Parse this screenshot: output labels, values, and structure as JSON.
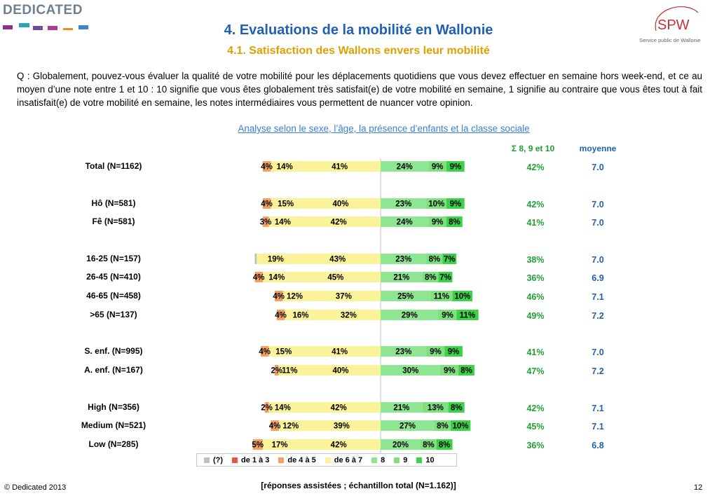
{
  "logo": {
    "text": "DEDICATED",
    "squares": [
      "#8e2f8a",
      "#2aa6b8",
      "#6a4c9c",
      "#b5388f",
      "#f08a1e",
      "#3d86c6"
    ]
  },
  "brand_logo": {
    "text": "SPW",
    "tagline": "Service public de Wallonie",
    "color": "#c0323a"
  },
  "title": "4. Evaluations de la mobilité en Wallonie",
  "subtitle": "4.1. Satisfaction des Wallons envers leur mobilité",
  "question": "Q : Globalement, pouvez-vous évaluer la qualité de votre mobilité pour les déplacements quotidiens que vous devez effectuer en semaine hors week-end, et ce au moyen d’une note entre 1 et 10 : 10 signifie que vous êtes globalement très satisfait(e) de votre mobilité en semaine, 1 signifie au contraire que vous êtes tout à fait insatisfait(e) de votre mobilité en semaine, les notes intermédiaires vous permettent de nuancer votre opinion.",
  "analysis_link": "Analyse selon le sexe, l’âge, la présence d’enfants et la classe sociale",
  "columns": {
    "sum_header": "Σ 8, 9 et 10",
    "avg_header": "moyenne"
  },
  "footer_note": "[réponses assistées ; échantillon total (N=1.162)]",
  "copyright": "© Dedicated 2013",
  "page_number": "12",
  "colors": {
    "na": "#c0c0c0",
    "r1_3": "#f0533a",
    "r4_5": "#f5a05c",
    "r6_7": "#fbf39a",
    "s8": "#8ee592",
    "s9": "#7fe07f",
    "s10": "#3bd24a",
    "sum_text": "#1fa032",
    "avg_text": "#1f5fb5",
    "title": "#1f5fb5",
    "subtitle": "#e0a000"
  },
  "chart_data": {
    "type": "bar",
    "orientation": "horizontal",
    "stacked": "diverging",
    "series": [
      {
        "name": "(?)",
        "key": "na",
        "values": [
          0,
          0,
          0,
          1,
          0,
          0,
          0,
          0,
          0,
          0,
          0,
          0
        ]
      },
      {
        "name": "de 1 à 3",
        "key": "r1_3",
        "values": [
          0,
          0,
          0,
          0,
          0,
          0,
          0,
          0,
          0,
          0,
          0,
          0
        ]
      },
      {
        "name": "de 4 à 5",
        "key": "r4_5",
        "values": [
          4,
          4,
          3,
          0,
          4,
          4,
          4,
          4,
          2,
          2,
          4,
          5
        ]
      },
      {
        "name": "de 6 à 7",
        "key": "r6_7",
        "values": [
          14,
          15,
          14,
          19,
          14,
          12,
          16,
          15,
          11,
          14,
          12,
          17
        ]
      },
      {
        "name": "",
        "key": "r6_7b",
        "values": [
          41,
          40,
          42,
          43,
          45,
          37,
          32,
          41,
          40,
          42,
          39,
          42
        ]
      },
      {
        "name": "8",
        "key": "s8",
        "values": [
          24,
          23,
          24,
          23,
          21,
          25,
          29,
          23,
          30,
          21,
          27,
          20
        ]
      },
      {
        "name": "9",
        "key": "s9",
        "values": [
          9,
          10,
          9,
          8,
          8,
          11,
          9,
          9,
          9,
          13,
          8,
          8
        ]
      },
      {
        "name": "10",
        "key": "s10",
        "values": [
          9,
          9,
          8,
          7,
          7,
          10,
          11,
          9,
          8,
          8,
          10,
          8
        ]
      }
    ],
    "rows": [
      {
        "label": "Total (N=1162)",
        "group": 0,
        "labels": [
          "4%",
          "14%",
          "41%",
          "24%",
          "9%",
          "9%"
        ],
        "sum": "42%",
        "avg": "7.0"
      },
      {
        "label": "Hô (N=581)",
        "group": 1,
        "labels": [
          "4%",
          "15%",
          "40%",
          "23%",
          "10%",
          "9%"
        ],
        "sum": "42%",
        "avg": "7.0"
      },
      {
        "label": "Fê (N=581)",
        "group": 1,
        "labels": [
          "3%",
          "14%",
          "42%",
          "24%",
          "9%",
          "8%"
        ],
        "sum": "41%",
        "avg": "7.0"
      },
      {
        "label": "16-25 (N=157)",
        "group": 2,
        "labels": [
          "",
          "19%",
          "43%",
          "23%",
          "8%",
          "7%"
        ],
        "sum": "38%",
        "avg": "7.0"
      },
      {
        "label": "26-45 (N=410)",
        "group": 2,
        "labels": [
          "4%",
          "14%",
          "45%",
          "21%",
          "8%",
          "7%"
        ],
        "sum": "36%",
        "avg": "6.9"
      },
      {
        "label": "46-65 (N=458)",
        "group": 2,
        "labels": [
          "4%",
          "12%",
          "37%",
          "25%",
          "11%",
          "10%"
        ],
        "sum": "46%",
        "avg": "7.1"
      },
      {
        "label": ">65 (N=137)",
        "group": 2,
        "labels": [
          "4%",
          "16%",
          "32%",
          "29%",
          "9%",
          "11%"
        ],
        "sum": "49%",
        "avg": "7.2"
      },
      {
        "label": "S. enf. (N=995)",
        "group": 3,
        "labels": [
          "4%",
          "15%",
          "41%",
          "23%",
          "9%",
          "9%"
        ],
        "sum": "41%",
        "avg": "7.0"
      },
      {
        "label": "A. enf. (N=167)",
        "group": 3,
        "labels": [
          "2%",
          "11%",
          "40%",
          "30%",
          "9%",
          "8%"
        ],
        "sum": "47%",
        "avg": "7.2"
      },
      {
        "label": "High (N=356)",
        "group": 4,
        "labels": [
          "2%",
          "14%",
          "42%",
          "21%",
          "13%",
          "8%"
        ],
        "sum": "42%",
        "avg": "7.1"
      },
      {
        "label": "Medium (N=521)",
        "group": 4,
        "labels": [
          "4%",
          "12%",
          "39%",
          "27%",
          "8%",
          "10%"
        ],
        "sum": "45%",
        "avg": "7.1"
      },
      {
        "label": "Low (N=285)",
        "group": 4,
        "labels": [
          "5%",
          "17%",
          "42%",
          "20%",
          "8%",
          "8%"
        ],
        "sum": "36%",
        "avg": "6.8"
      }
    ],
    "legend": [
      "(?)",
      "de 1 à 3",
      "de 4 à 5",
      "de 6 à 7",
      "8",
      "9",
      "10"
    ],
    "legend_position": "bottom"
  }
}
